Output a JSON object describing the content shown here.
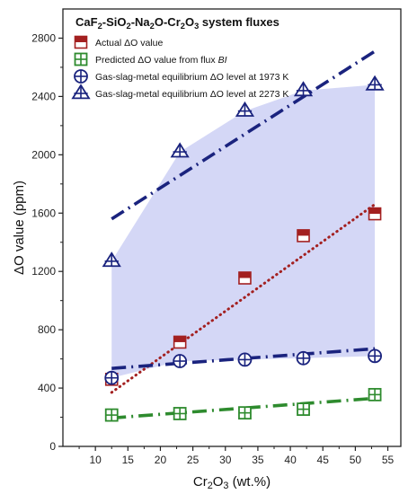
{
  "chart_data": {
    "type": "scatter",
    "title_parts": [
      {
        "t": "CaF",
        "sub": false
      },
      {
        "t": "2",
        "sub": true
      },
      {
        "t": "-SiO",
        "sub": false
      },
      {
        "t": "2",
        "sub": true
      },
      {
        "t": "-Na",
        "sub": false
      },
      {
        "t": "2",
        "sub": true
      },
      {
        "t": "O-Cr",
        "sub": false
      },
      {
        "t": "2",
        "sub": true
      },
      {
        "t": "O",
        "sub": false
      },
      {
        "t": "3",
        "sub": true
      },
      {
        "t": " system fluxes",
        "sub": false
      }
    ],
    "xlabel_parts": [
      {
        "t": "Cr",
        "sub": false
      },
      {
        "t": "2",
        "sub": true
      },
      {
        "t": "O",
        "sub": false
      },
      {
        "t": "3",
        "sub": true
      },
      {
        "t": " (wt.%)",
        "sub": false
      }
    ],
    "ylabel": "ΔO value (ppm)",
    "xlim": [
      5,
      57
    ],
    "ylim": [
      0,
      3000
    ],
    "xticks": [
      10,
      15,
      20,
      25,
      30,
      35,
      40,
      45,
      50,
      55
    ],
    "yticks": [
      0,
      400,
      800,
      1200,
      1600,
      2000,
      2400,
      2800
    ],
    "legend_position": "top-left",
    "series": [
      {
        "name": "Actual ΔO value",
        "marker": "half-square",
        "color": "#a32020",
        "x": [
          12.5,
          23,
          33,
          42,
          53
        ],
        "y": [
          460,
          715,
          1155,
          1445,
          1595
        ],
        "fit": {
          "style": "dotted",
          "x": [
            12.5,
            53
          ],
          "y": [
            370,
            1660
          ]
        }
      },
      {
        "name_parts": [
          {
            "t": "Predicted ΔO value from flux ",
            "italic": false
          },
          {
            "t": "BI",
            "italic": true
          }
        ],
        "marker": "square-plus",
        "color": "#2e8b2e",
        "x": [
          12.5,
          23,
          33,
          42,
          53
        ],
        "y": [
          215,
          225,
          230,
          255,
          355
        ],
        "fit": {
          "style": "dashdot",
          "x": [
            12.5,
            53
          ],
          "y": [
            195,
            330
          ]
        }
      },
      {
        "name": "Gas-slag-metal equilibrium ΔO level at 1973 K",
        "marker": "circle-plus",
        "color": "#1a237e",
        "x": [
          12.5,
          23,
          33,
          42,
          53
        ],
        "y": [
          470,
          585,
          595,
          605,
          620
        ],
        "fit": {
          "style": "dashdot",
          "x": [
            12.5,
            53
          ],
          "y": [
            535,
            670
          ]
        }
      },
      {
        "name": "Gas-slag-metal equilibrium ΔO level at 2273 K",
        "marker": "triangle-plus",
        "color": "#1a237e",
        "x": [
          12.5,
          23,
          33,
          42,
          53
        ],
        "y": [
          1270,
          2020,
          2300,
          2440,
          2480
        ],
        "fit": {
          "style": "dashdot",
          "x": [
            12.5,
            53
          ],
          "y": [
            1560,
            2710
          ]
        }
      }
    ],
    "shaded_region": {
      "color": "#c5c9f3",
      "x_upper": [
        12.5,
        23,
        33,
        42,
        53
      ],
      "y_upper": [
        1270,
        2020,
        2300,
        2440,
        2480
      ],
      "x_lower": [
        53,
        42,
        33,
        23,
        12.5
      ],
      "y_lower": [
        620,
        605,
        595,
        585,
        470
      ]
    }
  }
}
